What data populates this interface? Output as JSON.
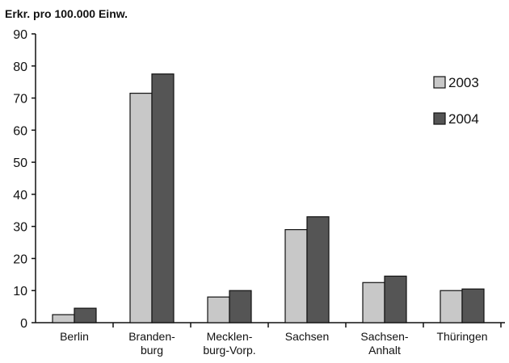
{
  "chart_data": {
    "type": "bar",
    "ylabel": "Erkr. pro 100.000 Einw.",
    "xlabel": "",
    "ylim": [
      0,
      90
    ],
    "yticks": [
      0,
      10,
      20,
      30,
      40,
      50,
      60,
      70,
      80,
      90
    ],
    "categories": [
      [
        "Berlin"
      ],
      [
        "Branden-",
        "burg"
      ],
      [
        "Mecklen-",
        "burg-Vorp."
      ],
      [
        "Sachsen"
      ],
      [
        "Sachsen-",
        "Anhalt"
      ],
      [
        "Thüringen"
      ]
    ],
    "series": [
      {
        "name": "2003",
        "color": "#c8c8c8",
        "values": [
          2.5,
          71.5,
          8,
          29,
          12.5,
          10
        ]
      },
      {
        "name": "2004",
        "color": "#555555",
        "values": [
          4.5,
          77.5,
          10,
          33,
          14.5,
          10.5
        ]
      }
    ],
    "legend_position": "right",
    "grid": false
  }
}
